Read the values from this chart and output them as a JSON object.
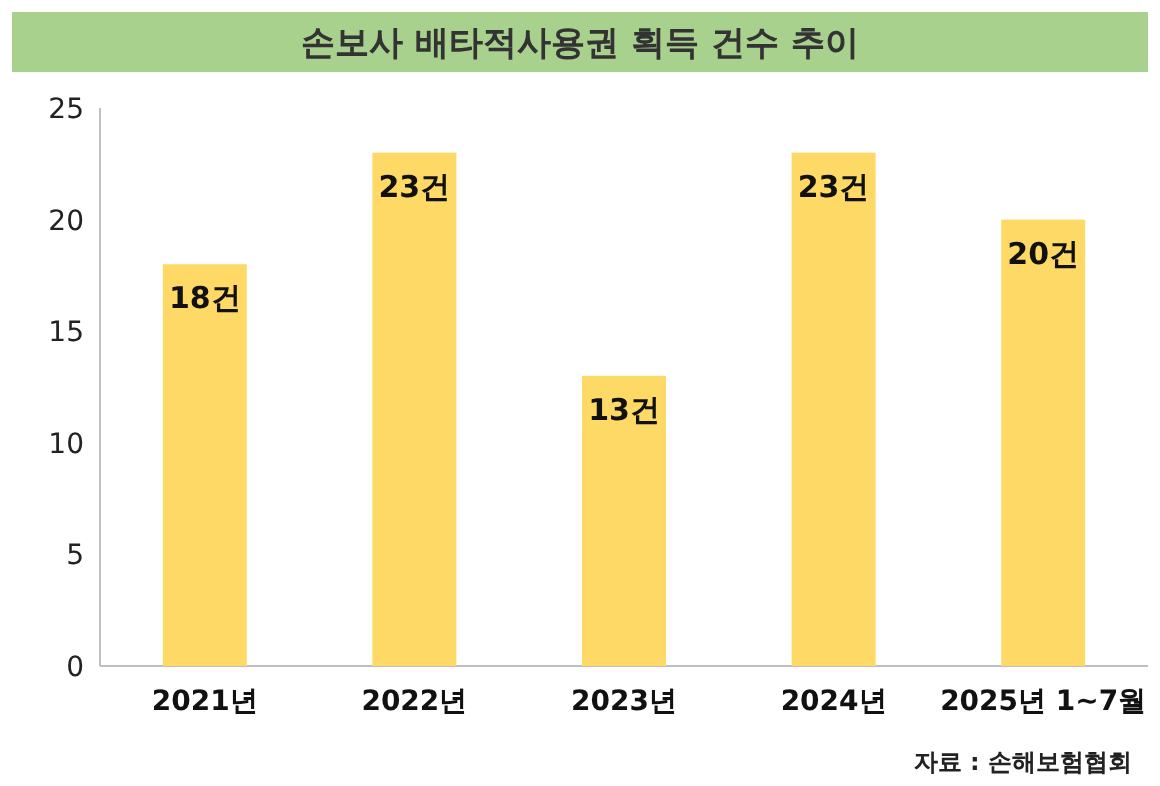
{
  "chart_data": {
    "type": "bar",
    "title": "손보사 배타적사용권 획득 건수 추이",
    "categories": [
      "2021년",
      "2022년",
      "2023년",
      "2024년",
      "2025년 1~7월"
    ],
    "values": [
      18,
      23,
      13,
      23,
      20
    ],
    "value_labels": [
      "18건",
      "23건",
      "13건",
      "23건",
      "20건"
    ],
    "color": "#ffd966",
    "ylim": [
      0,
      25
    ],
    "yticks": [
      0,
      5,
      10,
      15,
      20,
      25
    ],
    "grid": false,
    "annotations": [
      "자료 : 손해보험협회"
    ]
  }
}
